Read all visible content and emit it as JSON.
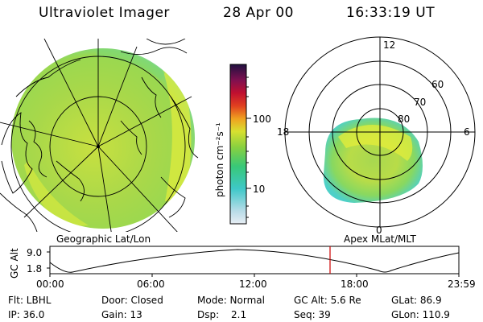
{
  "header": {
    "instrument": "Ultraviolet Imager",
    "date": "28 Apr 00",
    "time": "16:33:19 UT"
  },
  "colorbar": {
    "unit_label": "photon cm⁻²s⁻¹",
    "tick_100": "100",
    "tick_10": "10"
  },
  "polar_plot": {
    "mlt_12": "12",
    "mlt_18": "18",
    "mlt_6": "6",
    "mlt_0": "0",
    "lat_60": "60",
    "lat_70": "70",
    "lat_80": "80"
  },
  "panel_labels": {
    "geographic": "Geographic Lat/Lon",
    "apex": "Apex MLat/MLT"
  },
  "altitude_plot": {
    "ylabel": "GC Alt",
    "ytick_high": "9.0",
    "ytick_low": "1.8",
    "xticks": [
      "00:00",
      "06:00",
      "12:00",
      "18:00",
      "23:59"
    ]
  },
  "footer": {
    "row1": {
      "filter": "Flt: LBHL",
      "door": "Door: Closed",
      "mode": "Mode: Normal",
      "gc_alt": "GC Alt: 5.6 Re",
      "glat": "GLat: 86.9"
    },
    "row2": {
      "ip": "IP: 36.0",
      "gain": "Gain: 13",
      "dsp_label": "Dsp:",
      "dsp_value": "2.1",
      "seq": "Seq: 39",
      "glon": "GLon: 110.9"
    }
  },
  "colors": {
    "time_marker": "#cc0000",
    "aurora_green": "#a8d84a",
    "aurora_yellow": "#e6ee3a",
    "aurora_cyan": "#5fd8c8"
  }
}
